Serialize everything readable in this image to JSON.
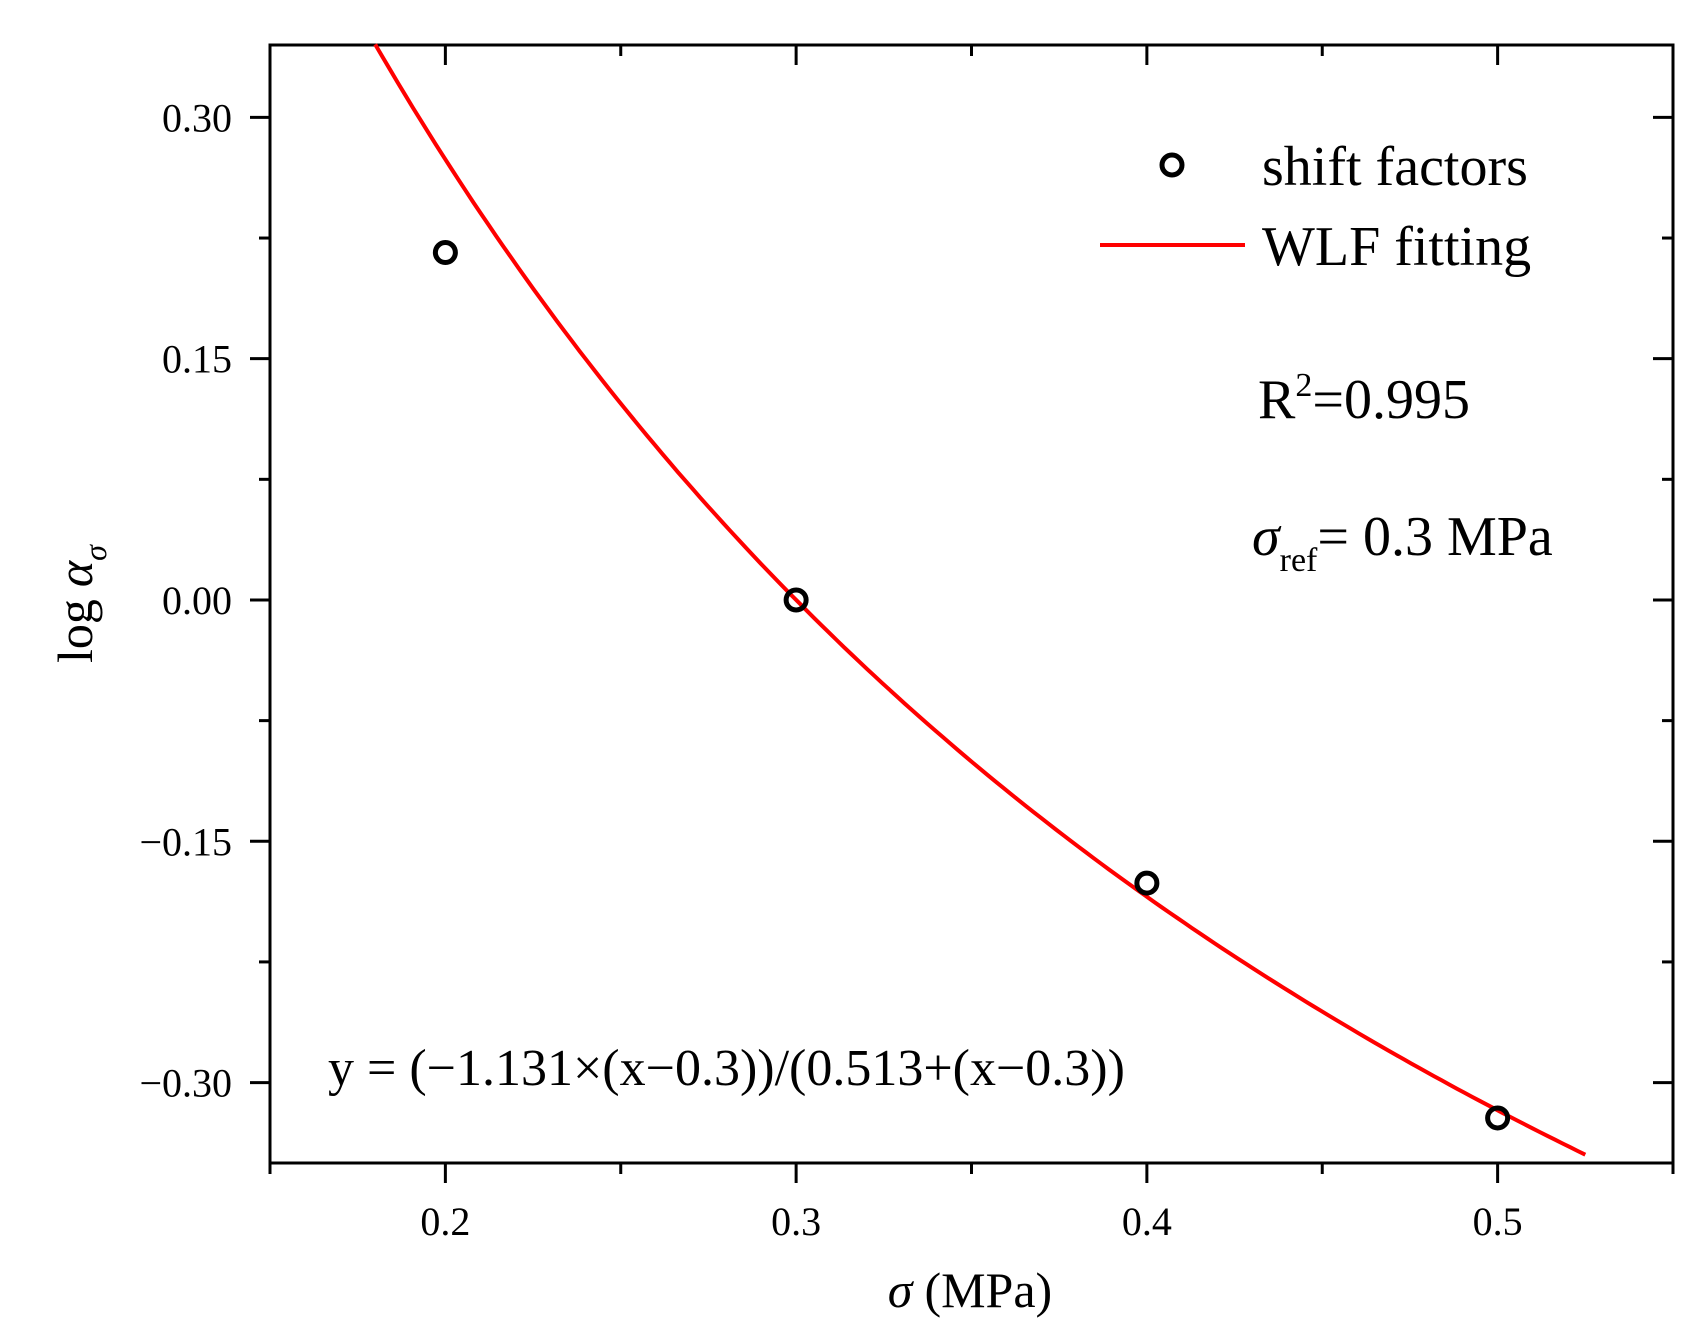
{
  "chart_data": {
    "type": "scatter",
    "title": "",
    "xlabel": {
      "symbol": "σ",
      "unit": "(MPa)"
    },
    "ylabel": {
      "prefix": "log",
      "symbol": "α",
      "subscript": "σ"
    },
    "xlim": [
      0.15,
      0.55
    ],
    "ylim": [
      -0.35,
      0.345
    ],
    "x_ticks": [
      {
        "value": 0.2,
        "label": "0.2"
      },
      {
        "value": 0.3,
        "label": "0.3"
      },
      {
        "value": 0.4,
        "label": "0.4"
      },
      {
        "value": 0.5,
        "label": "0.5"
      }
    ],
    "x_minor_ticks": [
      0.15,
      0.25,
      0.35,
      0.45,
      0.55
    ],
    "y_ticks": [
      {
        "value": 0.3,
        "label": "0.30"
      },
      {
        "value": 0.15,
        "label": "0.15"
      },
      {
        "value": 0.0,
        "label": "0.00"
      },
      {
        "value": -0.15,
        "label": "−0.15"
      },
      {
        "value": -0.3,
        "label": "−0.30"
      }
    ],
    "y_minor_ticks": [
      0.225,
      0.075,
      -0.075,
      -0.225
    ],
    "grid": false,
    "series": [
      {
        "name": "shift factors",
        "kind": "scatter",
        "marker": "open-circle",
        "color": "#000000",
        "x": [
          0.2,
          0.3,
          0.4,
          0.5
        ],
        "y": [
          0.216,
          0.0,
          -0.176,
          -0.322
        ]
      },
      {
        "name": "WLF fitting",
        "kind": "line",
        "color": "#ff0000",
        "model": {
          "c1": -1.131,
          "c2": 0.513,
          "x_ref": 0.3
        },
        "x_range": [
          0.18,
          0.525
        ]
      }
    ],
    "legend": {
      "placement": "top-right",
      "items": [
        "shift factors",
        "WLF fitting"
      ]
    },
    "annotations": {
      "r2": {
        "base": "R",
        "sup": "2",
        "rest": "=0.995"
      },
      "ref": {
        "symbol": "σ",
        "sub": "ref",
        "rest": "= 0.3 MPa"
      },
      "equation": "y = (−1.131×(x−0.3))/(0.513+(x−0.3))"
    }
  }
}
